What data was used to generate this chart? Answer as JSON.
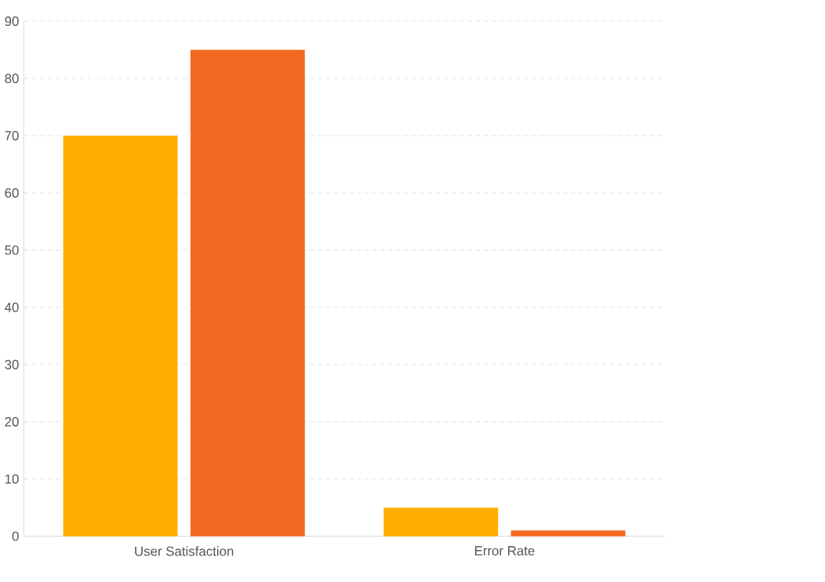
{
  "chart_data": {
    "type": "bar",
    "categories": [
      "User Satisfaction",
      "Error Rate"
    ],
    "series": [
      {
        "color": "#ffae00",
        "values": [
          70,
          5
        ]
      },
      {
        "color": "#f26a21",
        "values": [
          85,
          1
        ]
      }
    ],
    "ylim": [
      0,
      90
    ],
    "yticks": [
      0,
      10,
      20,
      30,
      40,
      50,
      60,
      70,
      80,
      90
    ],
    "grid": "y"
  }
}
